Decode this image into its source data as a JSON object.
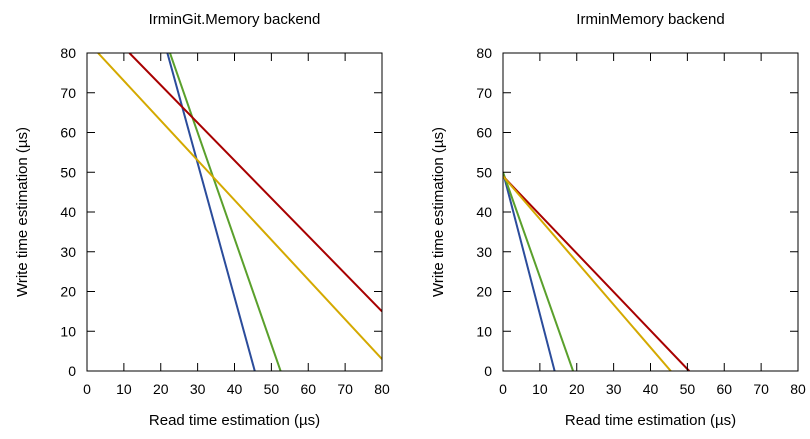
{
  "chart_data": [
    {
      "type": "line",
      "title": "IrminGit.Memory backend",
      "xlabel": "Read time estimation (µs)",
      "ylabel": "Write time estimation (µs)",
      "xlim": [
        0,
        80
      ],
      "ylim": [
        0,
        80
      ],
      "xticks": [
        0,
        10,
        20,
        30,
        40,
        50,
        60,
        70,
        80
      ],
      "yticks": [
        0,
        10,
        20,
        30,
        40,
        50,
        60,
        70,
        80
      ],
      "grid": false,
      "series": [
        {
          "color": "#2b4c9b",
          "x": [
            21.8,
            45.5
          ],
          "y": [
            80,
            0
          ]
        },
        {
          "color": "#5aa02c",
          "x": [
            22.5,
            52.5
          ],
          "y": [
            80,
            0
          ]
        },
        {
          "color": "#a80000",
          "x": [
            11.5,
            80
          ],
          "y": [
            80,
            15
          ]
        },
        {
          "color": "#d4a900",
          "x": [
            3,
            80
          ],
          "y": [
            80,
            3
          ]
        }
      ]
    },
    {
      "type": "line",
      "title": "IrminMemory backend",
      "xlabel": "Read time estimation (µs)",
      "ylabel": "Write time estimation (µs)",
      "xlim": [
        0,
        80
      ],
      "ylim": [
        0,
        80
      ],
      "xticks": [
        0,
        10,
        20,
        30,
        40,
        50,
        60,
        70,
        80
      ],
      "yticks": [
        0,
        10,
        20,
        30,
        40,
        50,
        60,
        70,
        80
      ],
      "grid": false,
      "series": [
        {
          "color": "#2b4c9b",
          "x": [
            0,
            14
          ],
          "y": [
            50,
            0
          ]
        },
        {
          "color": "#5aa02c",
          "x": [
            0,
            19
          ],
          "y": [
            50,
            0
          ]
        },
        {
          "color": "#a80000",
          "x": [
            0,
            50.5
          ],
          "y": [
            49,
            0
          ]
        },
        {
          "color": "#d4a900",
          "x": [
            0,
            45.5
          ],
          "y": [
            49,
            0
          ]
        }
      ]
    }
  ]
}
